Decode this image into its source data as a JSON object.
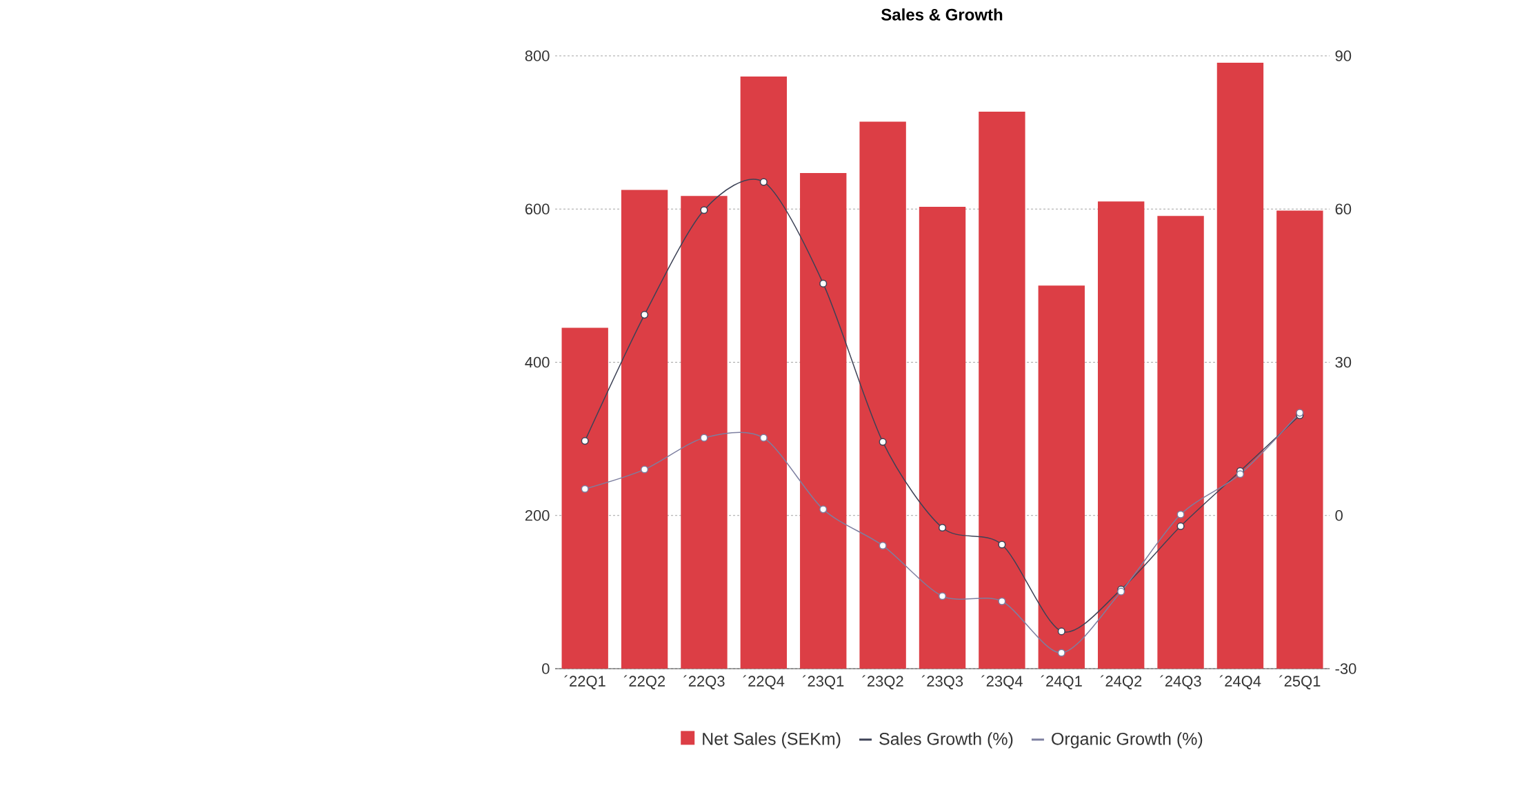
{
  "chart_data": {
    "type": "bar",
    "title": "Sales & Growth",
    "categories": [
      "´22Q1",
      "´22Q2",
      "´22Q3",
      "´22Q4",
      "´23Q1",
      "´23Q2",
      "´23Q3",
      "´23Q4",
      "´24Q1",
      "´24Q2",
      "´24Q3",
      "´24Q4",
      "´25Q1"
    ],
    "series": [
      {
        "name": "Net Sales (SEKm)",
        "color": "#dc3e45",
        "values": [
          445,
          625,
          617,
          773,
          647,
          714,
          603,
          727,
          500,
          610,
          591,
          791,
          598
        ]
      },
      {
        "name": "Sales Growth (%)",
        "type": "line",
        "axis": "y2",
        "color": "#3d4256",
        "values": [
          14.6,
          39.3,
          59.8,
          65.3,
          45.4,
          14.4,
          -2.4,
          -5.7,
          -22.7,
          -14.5,
          -2.1,
          8.7,
          19.6
        ]
      },
      {
        "name": "Organic Growth (%)",
        "type": "line",
        "axis": "y2",
        "color": "#7d7fa0",
        "values": [
          5.2,
          9.0,
          15.2,
          15.2,
          1.2,
          -5.9,
          -15.8,
          -16.8,
          -26.9,
          -14.9,
          0.2,
          8.1,
          20.1
        ]
      }
    ],
    "ylim": [
      0,
      800
    ],
    "yticks": [
      0,
      200,
      400,
      600,
      800
    ],
    "y2lim": [
      -30,
      90
    ],
    "y2ticks": [
      -30,
      0,
      30,
      60,
      90
    ],
    "grid": "y",
    "legend": "bottom",
    "marker": "circle",
    "line_style": "solid"
  }
}
